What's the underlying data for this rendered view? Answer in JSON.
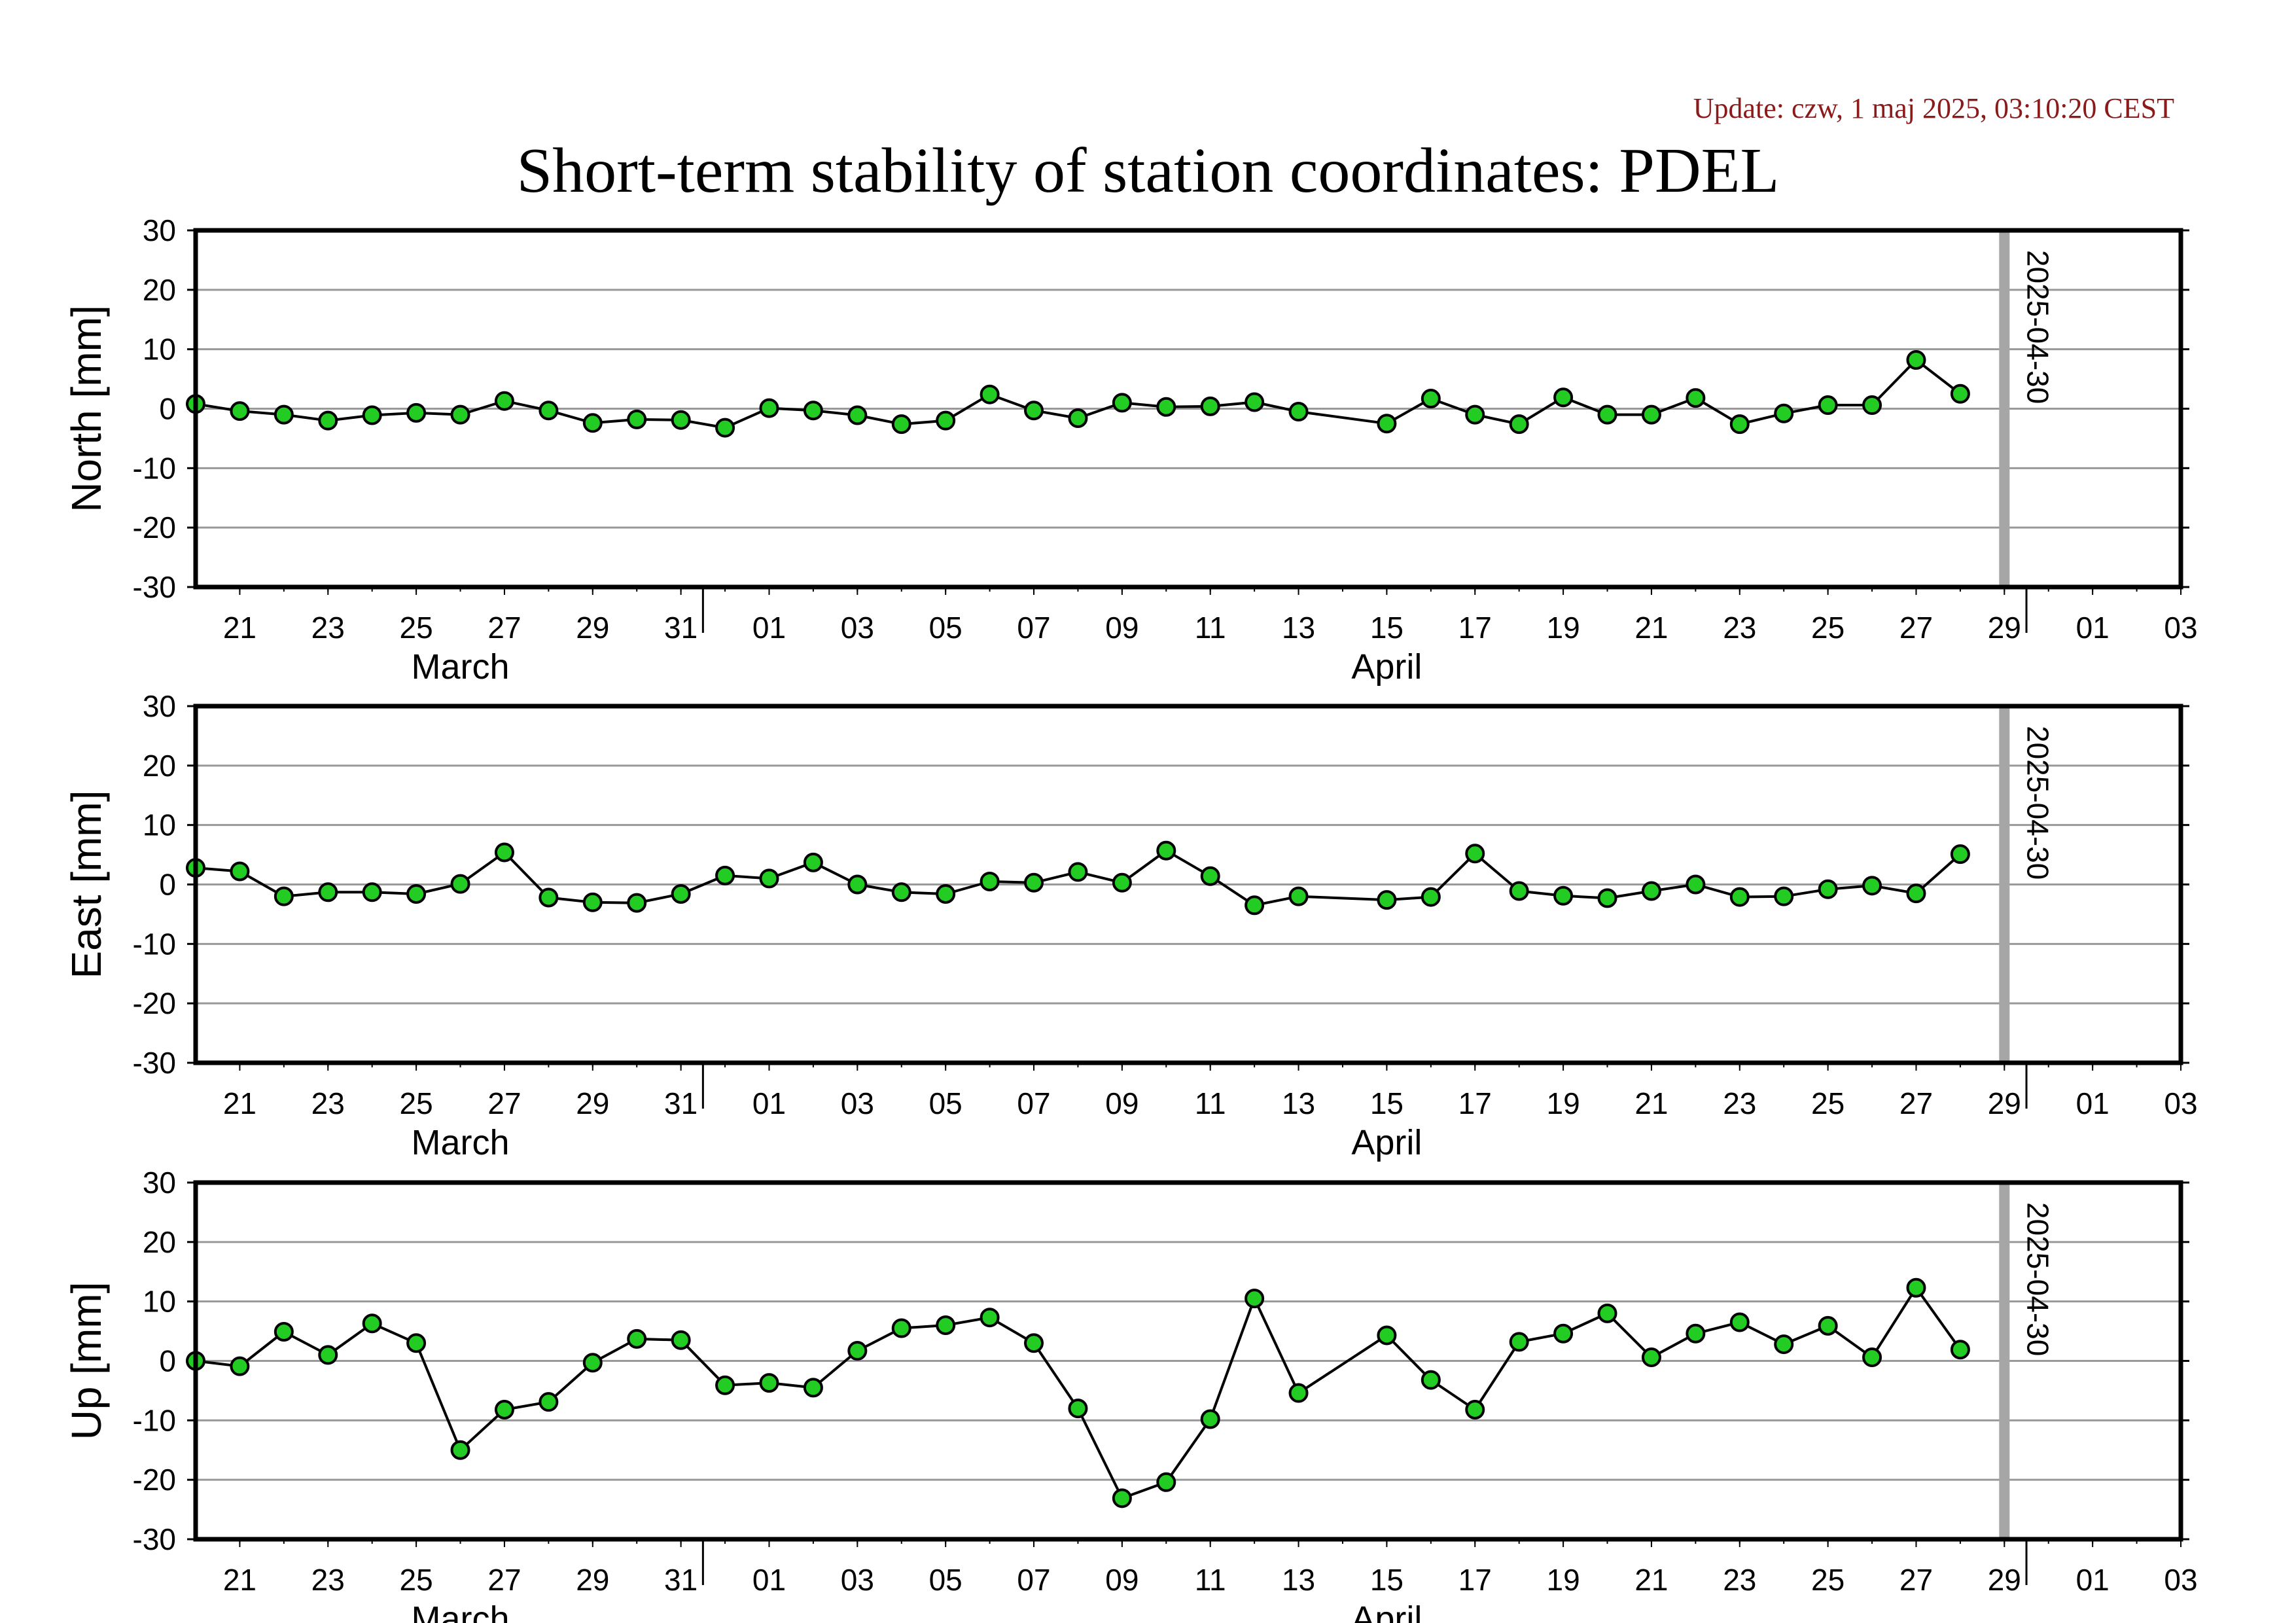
{
  "update_text": "Update: czw, 1 maj 2025, 03:10:20 CEST",
  "title": "Short-term stability of station coordinates: PDEL",
  "colors": {
    "marker_fill": "#22cc22",
    "marker_stroke": "#000000",
    "line": "#000000",
    "grid": "#999999",
    "current_day_bar": "#a6a6a6",
    "update_text": "#8b1a1a"
  },
  "chart_data": [
    {
      "type": "line",
      "ylabel": "North [mm]",
      "ylim": [
        -30,
        30
      ],
      "yticks": [
        30,
        20,
        10,
        0,
        -10,
        -20,
        -30
      ],
      "grid": true,
      "xlim": [
        "2025-03-20",
        "2025-05-04"
      ],
      "x_tick_labels": [
        "21",
        "23",
        "25",
        "27",
        "29",
        "31",
        "01",
        "03",
        "05",
        "07",
        "09",
        "11",
        "13",
        "15",
        "17",
        "19",
        "21",
        "23",
        "25",
        "27",
        "29",
        "01",
        "03"
      ],
      "month_labels": [
        "March",
        "April"
      ],
      "marker_line_date": "2025-04-30",
      "marker_line_label": "2025-04-30",
      "series": [
        {
          "x": [
            "2025-03-20",
            "2025-03-21",
            "2025-03-22",
            "2025-03-23",
            "2025-03-24",
            "2025-03-25",
            "2025-03-26",
            "2025-03-27",
            "2025-03-28",
            "2025-03-29",
            "2025-03-30",
            "2025-03-31",
            "2025-04-01",
            "2025-04-02",
            "2025-04-03",
            "2025-04-04",
            "2025-04-05",
            "2025-04-06",
            "2025-04-07",
            "2025-04-08",
            "2025-04-09",
            "2025-04-10",
            "2025-04-11",
            "2025-04-12",
            "2025-04-13",
            "2025-04-14",
            "2025-04-16",
            "2025-04-17",
            "2025-04-18",
            "2025-04-19",
            "2025-04-20",
            "2025-04-21",
            "2025-04-22",
            "2025-04-23",
            "2025-04-24",
            "2025-04-25",
            "2025-04-26",
            "2025-04-27",
            "2025-04-28",
            "2025-04-29"
          ],
          "y": [
            0.8,
            -0.4,
            -1.0,
            -2.0,
            -1.1,
            -0.7,
            -1.0,
            1.3,
            -0.3,
            -2.4,
            -1.8,
            -1.9,
            -3.2,
            0.1,
            -0.3,
            -1.1,
            -2.6,
            -2.0,
            2.4,
            -0.3,
            -1.6,
            1.0,
            0.3,
            0.4,
            1.1,
            -0.5,
            -2.5,
            1.7,
            -1.0,
            -2.6,
            1.9,
            -1.0,
            -1.0,
            1.8,
            -2.6,
            -0.8,
            0.6,
            0.6,
            8.2,
            2.5
          ]
        }
      ]
    },
    {
      "type": "line",
      "ylabel": "East [mm]",
      "ylim": [
        -30,
        30
      ],
      "yticks": [
        30,
        20,
        10,
        0,
        -10,
        -20,
        -30
      ],
      "grid": true,
      "xlim": [
        "2025-03-20",
        "2025-05-04"
      ],
      "x_tick_labels": [
        "21",
        "23",
        "25",
        "27",
        "29",
        "31",
        "01",
        "03",
        "05",
        "07",
        "09",
        "11",
        "13",
        "15",
        "17",
        "19",
        "21",
        "23",
        "25",
        "27",
        "29",
        "01",
        "03"
      ],
      "month_labels": [
        "March",
        "April"
      ],
      "marker_line_date": "2025-04-30",
      "marker_line_label": "2025-04-30",
      "series": [
        {
          "x": [
            "2025-03-20",
            "2025-03-21",
            "2025-03-22",
            "2025-03-23",
            "2025-03-24",
            "2025-03-25",
            "2025-03-26",
            "2025-03-27",
            "2025-03-28",
            "2025-03-29",
            "2025-03-30",
            "2025-03-31",
            "2025-04-01",
            "2025-04-02",
            "2025-04-03",
            "2025-04-04",
            "2025-04-05",
            "2025-04-06",
            "2025-04-07",
            "2025-04-08",
            "2025-04-09",
            "2025-04-10",
            "2025-04-11",
            "2025-04-12",
            "2025-04-13",
            "2025-04-14",
            "2025-04-16",
            "2025-04-17",
            "2025-04-18",
            "2025-04-19",
            "2025-04-20",
            "2025-04-21",
            "2025-04-22",
            "2025-04-23",
            "2025-04-24",
            "2025-04-25",
            "2025-04-26",
            "2025-04-27",
            "2025-04-28",
            "2025-04-29"
          ],
          "y": [
            2.8,
            2.2,
            -2.0,
            -1.3,
            -1.3,
            -1.6,
            0.1,
            5.4,
            -2.2,
            -3.0,
            -3.1,
            -1.6,
            1.5,
            1.0,
            3.7,
            0.0,
            -1.3,
            -1.6,
            0.5,
            0.3,
            2.1,
            0.3,
            5.7,
            1.4,
            -3.5,
            -2.0,
            -2.6,
            -2.1,
            5.2,
            -1.1,
            -1.9,
            -2.3,
            -1.1,
            0.0,
            -2.1,
            -2.0,
            -0.8,
            -0.2,
            -1.5,
            5.1
          ]
        }
      ]
    },
    {
      "type": "line",
      "ylabel": "Up [mm]",
      "ylim": [
        -30,
        30
      ],
      "yticks": [
        30,
        20,
        10,
        0,
        -10,
        -20,
        -30
      ],
      "grid": true,
      "xlim": [
        "2025-03-20",
        "2025-05-04"
      ],
      "x_tick_labels": [
        "21",
        "23",
        "25",
        "27",
        "29",
        "31",
        "01",
        "03",
        "05",
        "07",
        "09",
        "11",
        "13",
        "15",
        "17",
        "19",
        "21",
        "23",
        "25",
        "27",
        "29",
        "01",
        "03"
      ],
      "month_labels": [
        "March",
        "April"
      ],
      "marker_line_date": "2025-04-30",
      "marker_line_label": "2025-04-30",
      "series": [
        {
          "x": [
            "2025-03-20",
            "2025-03-21",
            "2025-03-22",
            "2025-03-23",
            "2025-03-24",
            "2025-03-25",
            "2025-03-26",
            "2025-03-27",
            "2025-03-28",
            "2025-03-29",
            "2025-03-30",
            "2025-03-31",
            "2025-04-01",
            "2025-04-02",
            "2025-04-03",
            "2025-04-04",
            "2025-04-05",
            "2025-04-06",
            "2025-04-07",
            "2025-04-08",
            "2025-04-09",
            "2025-04-10",
            "2025-04-11",
            "2025-04-12",
            "2025-04-13",
            "2025-04-14",
            "2025-04-16",
            "2025-04-17",
            "2025-04-18",
            "2025-04-19",
            "2025-04-20",
            "2025-04-21",
            "2025-04-22",
            "2025-04-23",
            "2025-04-24",
            "2025-04-25",
            "2025-04-26",
            "2025-04-27",
            "2025-04-28",
            "2025-04-29"
          ],
          "y": [
            0.0,
            -0.9,
            4.9,
            1.0,
            6.3,
            3.0,
            -15.0,
            -8.2,
            -6.9,
            -0.3,
            3.7,
            3.5,
            -4.1,
            -3.7,
            -4.5,
            1.7,
            5.5,
            6.0,
            7.3,
            3.0,
            -8.0,
            -23.1,
            -20.4,
            -9.8,
            10.5,
            -5.4,
            4.3,
            -3.2,
            -8.2,
            3.2,
            4.6,
            8.0,
            0.6,
            4.6,
            6.5,
            2.8,
            5.9,
            0.6,
            12.3,
            1.9
          ]
        }
      ]
    }
  ]
}
